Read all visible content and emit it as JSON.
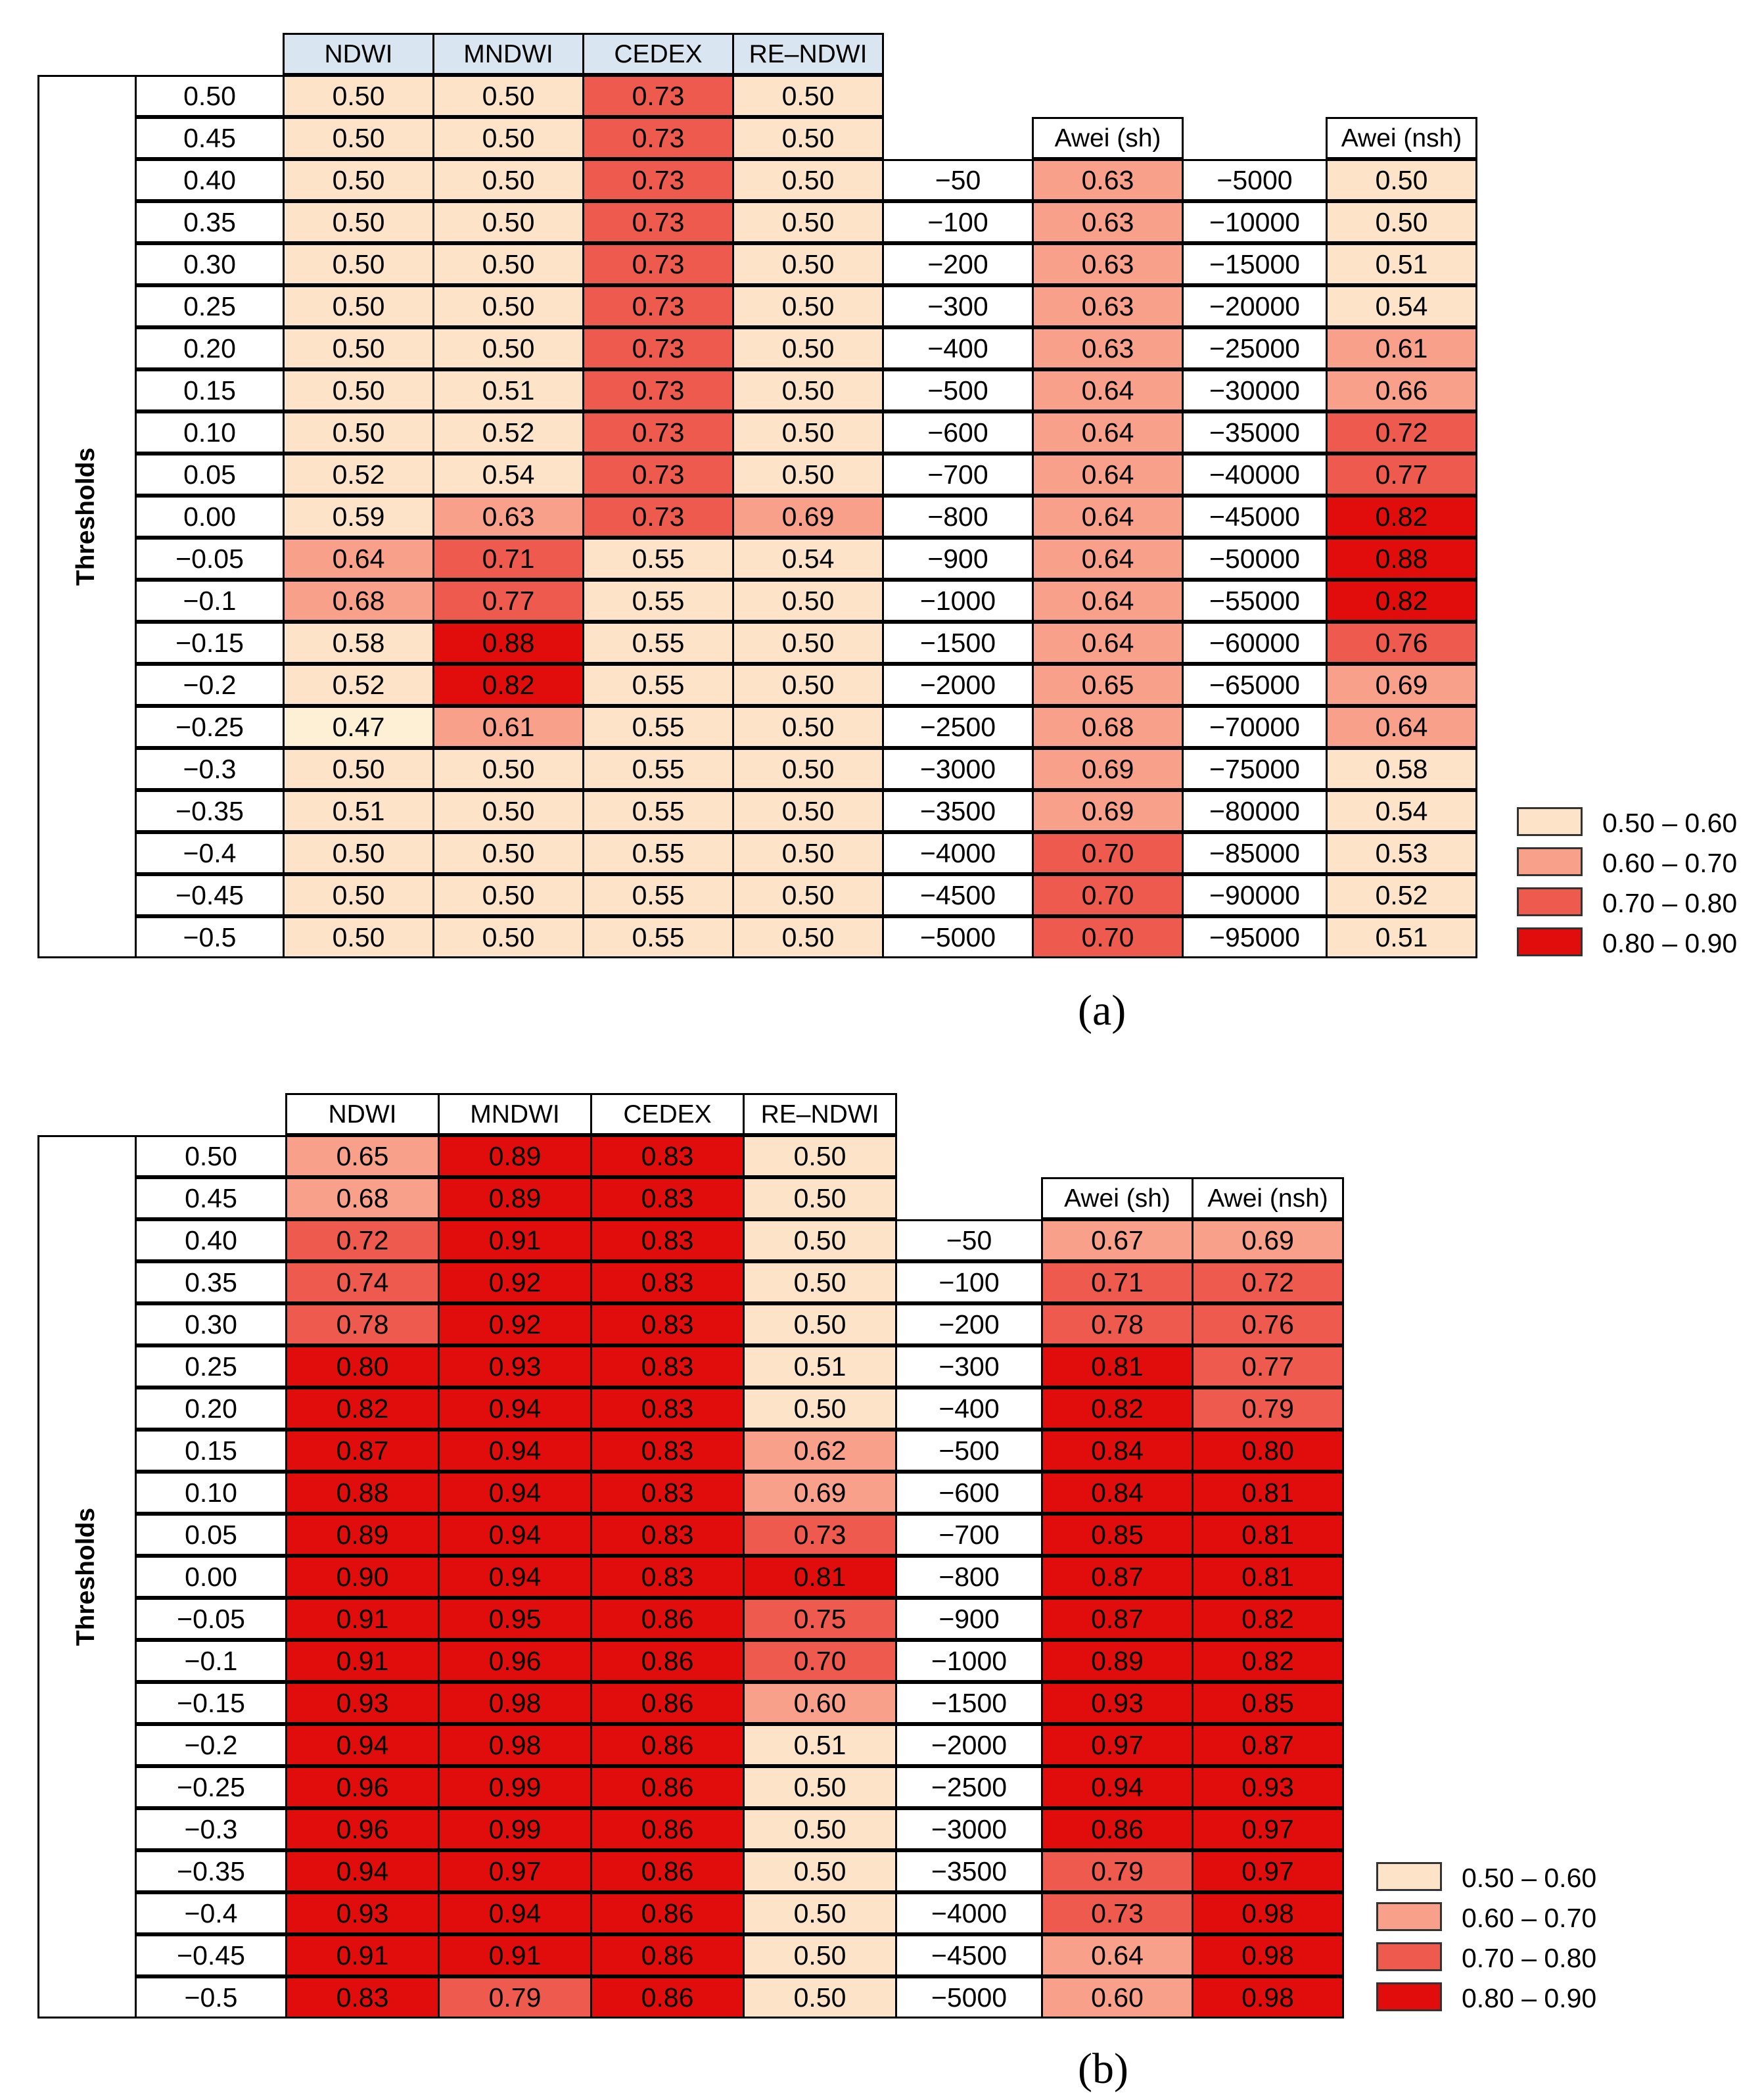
{
  "legend": {
    "bins": [
      {
        "label": "0.50 – 0.60",
        "min": 0.5,
        "max": 0.6,
        "color": "#fde3c8"
      },
      {
        "label": "0.60 – 0.70",
        "min": 0.6,
        "max": 0.7,
        "color": "#f8a08a"
      },
      {
        "label": "0.70 – 0.80",
        "min": 0.7,
        "max": 0.8,
        "color": "#ef5a4e"
      },
      {
        "label": "0.80 – 0.90",
        "min": 0.8,
        "max": 0.9,
        "color": "#e10d0d"
      }
    ],
    "below_color": "#fdf0d4",
    "above_color": "#e10d0d"
  },
  "header_fill_a": "#dae5f2",
  "chart_data": [
    {
      "type": "table",
      "panel_label": "(a)",
      "row_axis_label": "Thresholds",
      "columns": [
        "NDWI",
        "MNDWI",
        "CEDEX",
        "RE–NDWI"
      ],
      "thresholds": [
        "0.50",
        "0.45",
        "0.40",
        "0.35",
        "0.30",
        "0.25",
        "0.20",
        "0.15",
        "0.10",
        "0.05",
        "0.00",
        "−0.05",
        "−0.1",
        "−0.15",
        "−0.2",
        "−0.25",
        "−0.3",
        "−0.35",
        "−0.4",
        "−0.45",
        "−0.5"
      ],
      "rows": [
        [
          "0.50",
          "0.50",
          "0.73",
          "0.50"
        ],
        [
          "0.50",
          "0.50",
          "0.73",
          "0.50"
        ],
        [
          "0.50",
          "0.50",
          "0.73",
          "0.50"
        ],
        [
          "0.50",
          "0.50",
          "0.73",
          "0.50"
        ],
        [
          "0.50",
          "0.50",
          "0.73",
          "0.50"
        ],
        [
          "0.50",
          "0.50",
          "0.73",
          "0.50"
        ],
        [
          "0.50",
          "0.50",
          "0.73",
          "0.50"
        ],
        [
          "0.50",
          "0.51",
          "0.73",
          "0.50"
        ],
        [
          "0.50",
          "0.52",
          "0.73",
          "0.50"
        ],
        [
          "0.52",
          "0.54",
          "0.73",
          "0.50"
        ],
        [
          "0.59",
          "0.63",
          "0.73",
          "0.69"
        ],
        [
          "0.64",
          "0.71",
          "0.55",
          "0.54"
        ],
        [
          "0.68",
          "0.77",
          "0.55",
          "0.50"
        ],
        [
          "0.58",
          "0.88",
          "0.55",
          "0.50"
        ],
        [
          "0.52",
          "0.82",
          "0.55",
          "0.50"
        ],
        [
          "0.47",
          "0.61",
          "0.55",
          "0.50"
        ],
        [
          "0.50",
          "0.50",
          "0.55",
          "0.50"
        ],
        [
          "0.51",
          "0.50",
          "0.55",
          "0.50"
        ],
        [
          "0.50",
          "0.50",
          "0.55",
          "0.50"
        ],
        [
          "0.50",
          "0.50",
          "0.55",
          "0.50"
        ],
        [
          "0.50",
          "0.50",
          "0.55",
          "0.50"
        ]
      ],
      "awei_sh": {
        "header": "Awei (sh)",
        "thresholds": [
          "−50",
          "−100",
          "−200",
          "−300",
          "−400",
          "−500",
          "−600",
          "−700",
          "−800",
          "−900",
          "−1000",
          "−1500",
          "−2000",
          "−2500",
          "−3000",
          "−3500",
          "−4000",
          "−4500",
          "−5000"
        ],
        "values": [
          "0.63",
          "0.63",
          "0.63",
          "0.63",
          "0.63",
          "0.64",
          "0.64",
          "0.64",
          "0.64",
          "0.64",
          "0.64",
          "0.64",
          "0.65",
          "0.68",
          "0.69",
          "0.69",
          "0.70",
          "0.70",
          "0.70"
        ]
      },
      "awei_nsh": {
        "header": "Awei (nsh)",
        "thresholds": [
          "−5000",
          "−10000",
          "−15000",
          "−20000",
          "−25000",
          "−30000",
          "−35000",
          "−40000",
          "−45000",
          "−50000",
          "−55000",
          "−60000",
          "−65000",
          "−70000",
          "−75000",
          "−80000",
          "−85000",
          "−90000",
          "−95000"
        ],
        "values": [
          "0.50",
          "0.50",
          "0.51",
          "0.54",
          "0.61",
          "0.66",
          "0.72",
          "0.77",
          "0.82",
          "0.88",
          "0.82",
          "0.76",
          "0.69",
          "0.64",
          "0.58",
          "0.54",
          "0.53",
          "0.52",
          "0.51"
        ]
      }
    },
    {
      "type": "table",
      "panel_label": "(b)",
      "row_axis_label": "Thresholds",
      "columns": [
        "NDWI",
        "MNDWI",
        "CEDEX",
        "RE–NDWI"
      ],
      "thresholds": [
        "0.50",
        "0.45",
        "0.40",
        "0.35",
        "0.30",
        "0.25",
        "0.20",
        "0.15",
        "0.10",
        "0.05",
        "0.00",
        "−0.05",
        "−0.1",
        "−0.15",
        "−0.2",
        "−0.25",
        "−0.3",
        "−0.35",
        "−0.4",
        "−0.45",
        "−0.5"
      ],
      "rows": [
        [
          "0.65",
          "0.89",
          "0.83",
          "0.50"
        ],
        [
          "0.68",
          "0.89",
          "0.83",
          "0.50"
        ],
        [
          "0.72",
          "0.91",
          "0.83",
          "0.50"
        ],
        [
          "0.74",
          "0.92",
          "0.83",
          "0.50"
        ],
        [
          "0.78",
          "0.92",
          "0.83",
          "0.50"
        ],
        [
          "0.80",
          "0.93",
          "0.83",
          "0.51"
        ],
        [
          "0.82",
          "0.94",
          "0.83",
          "0.50"
        ],
        [
          "0.87",
          "0.94",
          "0.83",
          "0.62"
        ],
        [
          "0.88",
          "0.94",
          "0.83",
          "0.69"
        ],
        [
          "0.89",
          "0.94",
          "0.83",
          "0.73"
        ],
        [
          "0.90",
          "0.94",
          "0.83",
          "0.81"
        ],
        [
          "0.91",
          "0.95",
          "0.86",
          "0.75"
        ],
        [
          "0.91",
          "0.96",
          "0.86",
          "0.70"
        ],
        [
          "0.93",
          "0.98",
          "0.86",
          "0.60"
        ],
        [
          "0.94",
          "0.98",
          "0.86",
          "0.51"
        ],
        [
          "0.96",
          "0.99",
          "0.86",
          "0.50"
        ],
        [
          "0.96",
          "0.99",
          "0.86",
          "0.50"
        ],
        [
          "0.94",
          "0.97",
          "0.86",
          "0.50"
        ],
        [
          "0.93",
          "0.94",
          "0.86",
          "0.50"
        ],
        [
          "0.91",
          "0.91",
          "0.86",
          "0.50"
        ],
        [
          "0.83",
          "0.79",
          "0.86",
          "0.50"
        ]
      ],
      "awei": {
        "headers": [
          "Awei (sh)",
          "Awei (nsh)"
        ],
        "thresholds": [
          "−50",
          "−100",
          "−200",
          "−300",
          "−400",
          "−500",
          "−600",
          "−700",
          "−800",
          "−900",
          "−1000",
          "−1500",
          "−2000",
          "−2500",
          "−3000",
          "−3500",
          "−4000",
          "−4500",
          "−5000"
        ],
        "sh": [
          "0.67",
          "0.71",
          "0.78",
          "0.81",
          "0.82",
          "0.84",
          "0.84",
          "0.85",
          "0.87",
          "0.87",
          "0.89",
          "0.93",
          "0.97",
          "0.94",
          "0.86",
          "0.79",
          "0.73",
          "0.64",
          "0.60"
        ],
        "nsh": [
          "0.69",
          "0.72",
          "0.76",
          "0.77",
          "0.79",
          "0.80",
          "0.81",
          "0.81",
          "0.81",
          "0.82",
          "0.82",
          "0.85",
          "0.87",
          "0.93",
          "0.97",
          "0.97",
          "0.98",
          "0.98",
          "0.98"
        ]
      }
    }
  ]
}
